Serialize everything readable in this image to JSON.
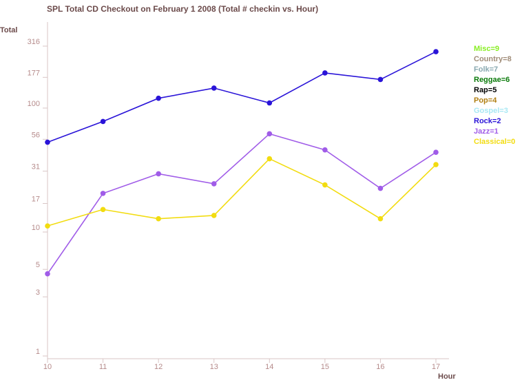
{
  "chart_data": {
    "type": "line",
    "title": "SPL Total CD Checkout on February 1 2008 (Total # checkin vs. Hour)",
    "ylabel": "Total",
    "xlabel": "Hour",
    "y_scale": "log",
    "y_ticks": [
      1,
      3,
      5,
      10,
      17,
      31,
      56,
      100,
      177,
      316
    ],
    "x": [
      10,
      11,
      12,
      13,
      14,
      15,
      16,
      17
    ],
    "xlim": [
      10,
      17
    ],
    "grid": false,
    "legend_position": "right",
    "legend": [
      {
        "label": "Misc=9",
        "color": "#88ee22"
      },
      {
        "label": "Country=8",
        "color": "#a08c78"
      },
      {
        "label": "Folk=7",
        "color": "#88a8b0"
      },
      {
        "label": "Reggae=6",
        "color": "#0a7a0a"
      },
      {
        "label": "Rap=5",
        "color": "#000000"
      },
      {
        "label": "Pop=4",
        "color": "#b07e10"
      },
      {
        "label": "Gospel=3",
        "color": "#a8e8f4"
      },
      {
        "label": "Rock=2",
        "color": "#2a14d8"
      },
      {
        "label": "Jazz=1",
        "color": "#a05ce8"
      },
      {
        "label": "Classical=0",
        "color": "#f2dc10"
      }
    ],
    "series": [
      {
        "name": "Rock=2",
        "color": "#2a14d8",
        "values": [
          53,
          78,
          120,
          145,
          110,
          192,
          170,
          285
        ]
      },
      {
        "name": "Jazz=1",
        "color": "#a05ce8",
        "values": [
          4.6,
          20.5,
          29.5,
          24.5,
          62,
          46,
          22.5,
          44
        ]
      },
      {
        "name": "Classical=0",
        "color": "#f2dc10",
        "values": [
          11.2,
          15.2,
          12.8,
          13.6,
          39,
          24,
          12.8,
          35
        ]
      }
    ]
  }
}
